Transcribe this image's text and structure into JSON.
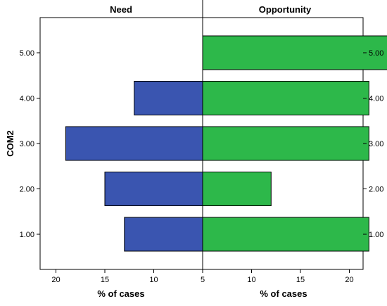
{
  "chart_data": {
    "type": "bar",
    "orientation": "horizontal",
    "layout": "back-to-back",
    "ylabel": "COM2",
    "categories": [
      "1.00",
      "2.00",
      "3.00",
      "4.00",
      "5.00"
    ],
    "left_ticks": [
      "20",
      "15",
      "10",
      "5"
    ],
    "right_ticks": [
      "5",
      "10",
      "15",
      "20"
    ],
    "xlim": [
      0,
      20
    ],
    "series": [
      {
        "name": "Need",
        "xlabel": "% of cases",
        "color": "#3a55b0",
        "values": [
          8,
          10,
          14,
          7,
          0
        ]
      },
      {
        "name": "Opportunity",
        "xlabel": "% of cases",
        "color": "#2db84a",
        "values": [
          17,
          7,
          17,
          17,
          19
        ]
      }
    ]
  }
}
